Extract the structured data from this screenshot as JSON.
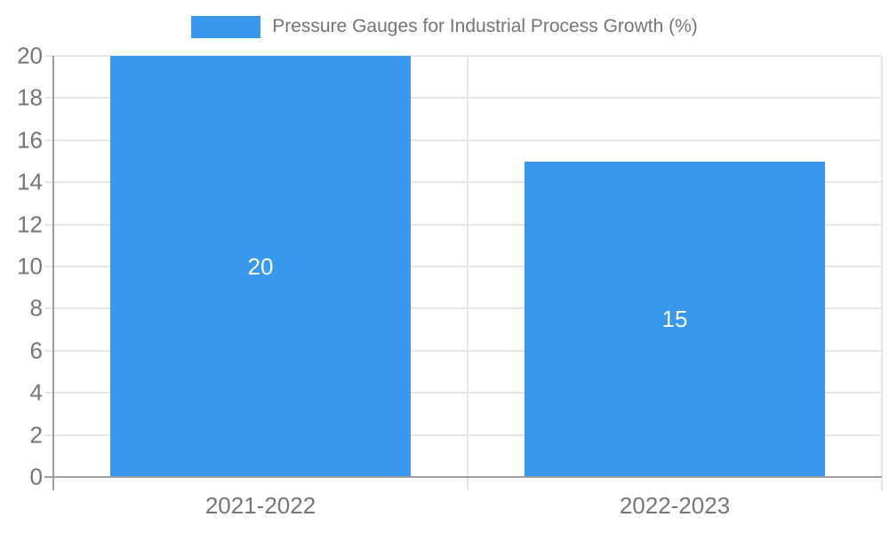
{
  "chart_data": {
    "type": "bar",
    "legend": {
      "label": "Pressure Gauges for Industrial Process Growth (%)",
      "position": "top"
    },
    "categories": [
      "2021-2022",
      "2022-2023"
    ],
    "series": [
      {
        "name": "Pressure Gauges for Industrial Process Growth (%)",
        "values": [
          20,
          15
        ]
      }
    ],
    "data_labels": [
      "20",
      "15"
    ],
    "xlabel": "",
    "ylabel": "",
    "ylim": [
      0,
      20
    ],
    "yticks": [
      0,
      2,
      4,
      6,
      8,
      10,
      12,
      14,
      16,
      18,
      20
    ],
    "grid": true,
    "bar_width_fraction": 0.725
  },
  "colors": {
    "bar": "#3898ec",
    "grid": "#e6e6e6",
    "axis": "#9e9e9e",
    "text": "#757575",
    "value_label": "#ffffff",
    "background": "#ffffff"
  }
}
